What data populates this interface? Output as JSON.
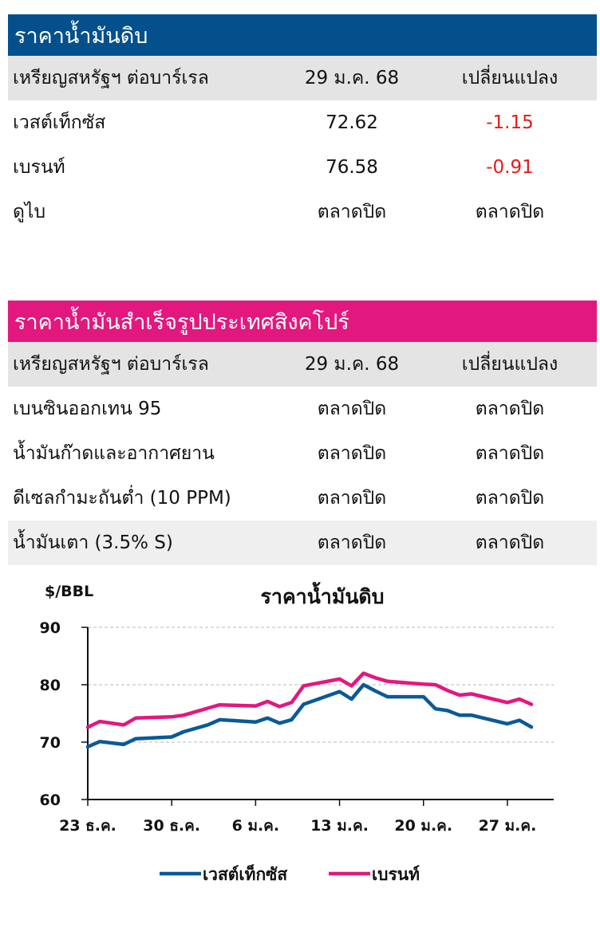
{
  "crude_table": {
    "title": "ราคาน้ำมันดิบ",
    "header": [
      "เหรียญสหรัฐฯ ต่อบาร์เรล",
      "29 ม.ค. 68",
      "เปลี่ยนแปลง"
    ],
    "rows": [
      {
        "name": "เวสต์เท็กซัส",
        "price": "72.62",
        "change": "-1.15"
      },
      {
        "name": "เบรนท์",
        "price": "76.58",
        "change": "-0.91"
      },
      {
        "name": "ดูไบ",
        "price": "ตลาดปิด",
        "change": "ตลาดปิด"
      }
    ]
  },
  "refined_table": {
    "title": "ราคาน้ำมันสำเร็จรูปประเทศสิงคโปร์",
    "header": [
      "เหรียญสหรัฐฯ ต่อบาร์เรล",
      "29 ม.ค. 68",
      "เปลี่ยนแปลง"
    ],
    "rows": [
      {
        "name": "เบนซินออกเทน 95",
        "price": "ตลาดปิด",
        "change": "ตลาดปิด"
      },
      {
        "name": "น้ำมันก๊าดและอากาศยาน",
        "price": "ตลาดปิด",
        "change": "ตลาดปิด"
      },
      {
        "name": "ดีเซลกำมะถันต่ำ (10 PPM)",
        "price": "ตลาดปิด",
        "change": "ตลาดปิด"
      },
      {
        "name": "น้ำมันเตา (3.5% S)",
        "price": "ตลาดปิด",
        "change": "ตลาดปิด"
      }
    ]
  },
  "colors": {
    "wti": "#0a5a96",
    "brent": "#e2187f",
    "crude_header": "#03508c",
    "refined_header": "#e2187f",
    "negative": "#e31b1b"
  },
  "chart_data": {
    "type": "line",
    "title": "ราคาน้ำมันดิบ",
    "ylabel": "$/BBL",
    "ylim": [
      60,
      90
    ],
    "yticks": [
      60,
      70,
      80,
      90
    ],
    "xlim": [
      0,
      37
    ],
    "xticks": [
      {
        "day": 0,
        "label": "23 ธ.ค."
      },
      {
        "day": 7,
        "label": "30 ธ.ค."
      },
      {
        "day": 14,
        "label": "6 ม.ค."
      },
      {
        "day": 21,
        "label": "13 ม.ค."
      },
      {
        "day": 28,
        "label": "20 ม.ค."
      },
      {
        "day": 35,
        "label": "27 ม.ค."
      }
    ],
    "grid": true,
    "legend_position": "bottom",
    "series": [
      {
        "name": "เวสต์เท็กซัส",
        "color": "#0a5a96",
        "points": [
          [
            0,
            69.2
          ],
          [
            1,
            70.1
          ],
          [
            3,
            69.6
          ],
          [
            4,
            70.6
          ],
          [
            7,
            70.9
          ],
          [
            8,
            71.8
          ],
          [
            10,
            73.0
          ],
          [
            11,
            73.9
          ],
          [
            14,
            73.5
          ],
          [
            15,
            74.2
          ],
          [
            16,
            73.3
          ],
          [
            17,
            73.9
          ],
          [
            18,
            76.6
          ],
          [
            21,
            78.8
          ],
          [
            22,
            77.5
          ],
          [
            23,
            80.0
          ],
          [
            24,
            78.9
          ],
          [
            25,
            77.9
          ],
          [
            28,
            77.9
          ],
          [
            29,
            75.8
          ],
          [
            30,
            75.5
          ],
          [
            31,
            74.7
          ],
          [
            32,
            74.7
          ],
          [
            35,
            73.2
          ],
          [
            36,
            73.8
          ],
          [
            37,
            72.62
          ]
        ]
      },
      {
        "name": "เบรนท์",
        "color": "#e2187f",
        "points": [
          [
            0,
            72.6
          ],
          [
            1,
            73.6
          ],
          [
            3,
            73.0
          ],
          [
            4,
            74.2
          ],
          [
            7,
            74.4
          ],
          [
            8,
            74.7
          ],
          [
            10,
            75.9
          ],
          [
            11,
            76.5
          ],
          [
            14,
            76.3
          ],
          [
            15,
            77.1
          ],
          [
            16,
            76.2
          ],
          [
            17,
            76.9
          ],
          [
            18,
            79.8
          ],
          [
            21,
            81.0
          ],
          [
            22,
            79.8
          ],
          [
            23,
            82.0
          ],
          [
            24,
            81.2
          ],
          [
            25,
            80.6
          ],
          [
            28,
            80.1
          ],
          [
            29,
            80.0
          ],
          [
            30,
            79.0
          ],
          [
            31,
            78.2
          ],
          [
            32,
            78.4
          ],
          [
            35,
            76.9
          ],
          [
            36,
            77.5
          ],
          [
            37,
            76.58
          ]
        ]
      }
    ]
  }
}
